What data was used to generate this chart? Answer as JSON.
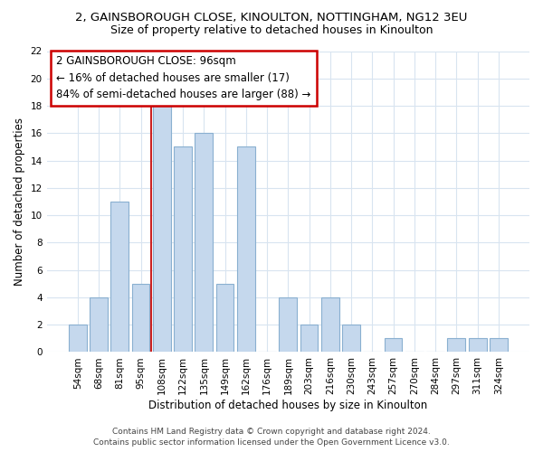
{
  "title": "2, GAINSBOROUGH CLOSE, KINOULTON, NOTTINGHAM, NG12 3EU",
  "subtitle": "Size of property relative to detached houses in Kinoulton",
  "bar_labels": [
    "54sqm",
    "68sqm",
    "81sqm",
    "95sqm",
    "108sqm",
    "122sqm",
    "135sqm",
    "149sqm",
    "162sqm",
    "176sqm",
    "189sqm",
    "203sqm",
    "216sqm",
    "230sqm",
    "243sqm",
    "257sqm",
    "270sqm",
    "284sqm",
    "297sqm",
    "311sqm",
    "324sqm"
  ],
  "bar_values": [
    2,
    4,
    11,
    5,
    18,
    15,
    16,
    5,
    15,
    0,
    4,
    2,
    4,
    2,
    0,
    1,
    0,
    0,
    1,
    1,
    1
  ],
  "bar_color": "#c5d8ed",
  "bar_edge_color": "#8ab0d0",
  "xlabel": "Distribution of detached houses by size in Kinoulton",
  "ylabel": "Number of detached properties",
  "ylim": [
    0,
    22
  ],
  "yticks": [
    0,
    2,
    4,
    6,
    8,
    10,
    12,
    14,
    16,
    18,
    20,
    22
  ],
  "annotation_title": "2 GAINSBOROUGH CLOSE: 96sqm",
  "annotation_line1": "← 16% of detached houses are smaller (17)",
  "annotation_line2": "84% of semi-detached houses are larger (88) →",
  "annotation_box_color": "#ffffff",
  "annotation_box_edge": "#cc0000",
  "vline_x": 3.5,
  "footer_line1": "Contains HM Land Registry data © Crown copyright and database right 2024.",
  "footer_line2": "Contains public sector information licensed under the Open Government Licence v3.0.",
  "background_color": "#ffffff",
  "grid_color": "#d8e4f0",
  "title_fontsize": 9.5,
  "subtitle_fontsize": 9,
  "xlabel_fontsize": 8.5,
  "ylabel_fontsize": 8.5,
  "tick_fontsize": 7.5,
  "footer_fontsize": 6.5,
  "ann_fontsize": 8.5
}
